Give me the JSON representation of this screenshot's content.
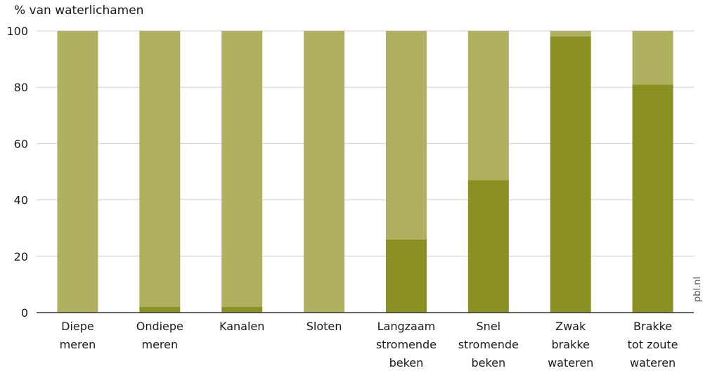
{
  "chart_data": {
    "type": "bar",
    "stacked": true,
    "ylabel": "% van waterlichamen",
    "ylim": [
      0,
      100
    ],
    "yticks": [
      "0",
      "20",
      "40",
      "60",
      "80",
      "100"
    ],
    "grid": true,
    "categories": [
      [
        "Diepe",
        "meren"
      ],
      [
        "Ondiepe",
        "meren"
      ],
      [
        "Kanalen"
      ],
      [
        "Sloten"
      ],
      [
        "Langzaam",
        "stromende",
        "beken"
      ],
      [
        "Snel",
        "stromende",
        "beken"
      ],
      [
        "Zwak",
        "brakke",
        "wateren"
      ],
      [
        "Brakke",
        "tot zoute",
        "wateren"
      ]
    ],
    "series": [
      {
        "values": [
          0,
          2,
          2,
          0,
          26,
          47,
          98,
          81
        ],
        "color": "#8b9023"
      },
      {
        "values": [
          100,
          98,
          98,
          100,
          74,
          53,
          2,
          19
        ],
        "color": "#b0b061"
      }
    ]
  },
  "source_label": "pbl.nl"
}
